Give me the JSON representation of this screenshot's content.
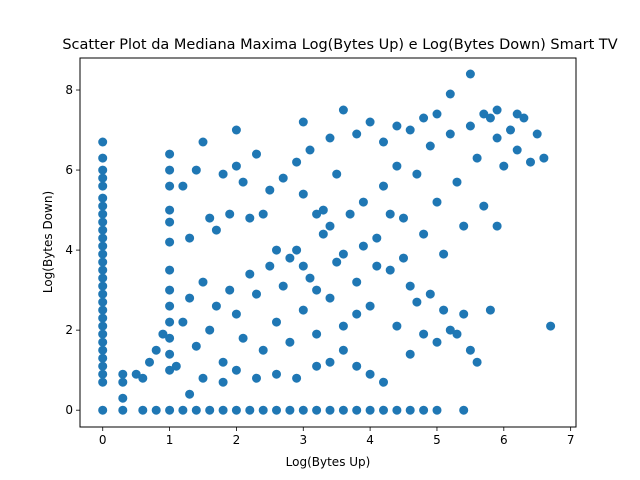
{
  "chart_data": {
    "type": "scatter",
    "title": "Scatter Plot da Mediana Maxima Log(Bytes Up) e Log(Bytes Down) Smart TV",
    "xlabel": "Log(Bytes Up)",
    "ylabel": "Log(Bytes Down)",
    "xlim": [
      -0.34,
      7.08
    ],
    "ylim": [
      -0.42,
      8.8
    ],
    "xticks": [
      0,
      1,
      2,
      3,
      4,
      5,
      6,
      7
    ],
    "yticks": [
      0,
      2,
      4,
      6,
      8
    ],
    "grid": false,
    "color": "#1f77b4",
    "series": [
      {
        "points": [
          [
            0,
            0
          ],
          [
            0,
            0.7
          ],
          [
            0,
            0.9
          ],
          [
            0,
            1.1
          ],
          [
            0,
            1.3
          ],
          [
            0,
            1.5
          ],
          [
            0,
            1.7
          ],
          [
            0,
            1.9
          ],
          [
            0,
            2.1
          ],
          [
            0,
            2.3
          ],
          [
            0,
            2.5
          ],
          [
            0,
            2.7
          ],
          [
            0,
            2.9
          ],
          [
            0,
            3.1
          ],
          [
            0,
            3.3
          ],
          [
            0,
            3.5
          ],
          [
            0,
            3.7
          ],
          [
            0,
            3.9
          ],
          [
            0,
            4.1
          ],
          [
            0,
            4.3
          ],
          [
            0,
            4.5
          ],
          [
            0,
            4.7
          ],
          [
            0,
            4.9
          ],
          [
            0,
            5.1
          ],
          [
            0,
            5.3
          ],
          [
            0,
            5.6
          ],
          [
            0,
            5.8
          ],
          [
            0,
            6.0
          ],
          [
            0,
            6.3
          ],
          [
            0,
            6.7
          ],
          [
            0.3,
            0
          ],
          [
            0.3,
            0.3
          ],
          [
            0.3,
            0.7
          ],
          [
            0.3,
            0.9
          ],
          [
            0.5,
            0.9
          ],
          [
            0.6,
            0.8
          ],
          [
            0.6,
            0
          ],
          [
            0.8,
            0
          ],
          [
            1.0,
            0
          ],
          [
            1.2,
            0
          ],
          [
            1.4,
            0
          ],
          [
            1.6,
            0
          ],
          [
            1.8,
            0
          ],
          [
            2.0,
            0
          ],
          [
            2.2,
            0
          ],
          [
            2.4,
            0
          ],
          [
            2.6,
            0
          ],
          [
            2.8,
            0
          ],
          [
            3.0,
            0
          ],
          [
            3.2,
            0
          ],
          [
            3.4,
            0
          ],
          [
            3.6,
            0
          ],
          [
            3.8,
            0
          ],
          [
            4.0,
            0
          ],
          [
            4.2,
            0
          ],
          [
            4.4,
            0
          ],
          [
            4.6,
            0
          ],
          [
            4.8,
            0
          ],
          [
            5.0,
            0
          ],
          [
            5.4,
            0
          ],
          [
            1.0,
            6.4
          ],
          [
            1.0,
            6.0
          ],
          [
            1.0,
            5.6
          ],
          [
            1.0,
            5.0
          ],
          [
            1.0,
            4.7
          ],
          [
            1.0,
            4.2
          ],
          [
            1.0,
            3.5
          ],
          [
            1.0,
            3.0
          ],
          [
            1.0,
            2.6
          ],
          [
            1.0,
            2.2
          ],
          [
            1.0,
            1.8
          ],
          [
            1.0,
            1.4
          ],
          [
            1.0,
            1.0
          ],
          [
            1.2,
            5.6
          ],
          [
            1.3,
            4.3
          ],
          [
            1.4,
            6.0
          ],
          [
            1.5,
            6.7
          ],
          [
            1.6,
            4.8
          ],
          [
            1.8,
            5.9
          ],
          [
            1.9,
            4.9
          ],
          [
            2.0,
            7.0
          ],
          [
            2.0,
            6.1
          ],
          [
            2.3,
            6.4
          ],
          [
            2.2,
            4.8
          ],
          [
            2.5,
            5.5
          ],
          [
            2.4,
            4.9
          ],
          [
            1.7,
            4.5
          ],
          [
            2.1,
            5.7
          ],
          [
            0.7,
            1.2
          ],
          [
            0.8,
            1.5
          ],
          [
            0.9,
            1.9
          ],
          [
            1.1,
            1.1
          ],
          [
            1.2,
            2.2
          ],
          [
            1.3,
            2.8
          ],
          [
            1.4,
            1.6
          ],
          [
            1.5,
            3.2
          ],
          [
            1.6,
            2.0
          ],
          [
            1.7,
            2.6
          ],
          [
            1.8,
            1.2
          ],
          [
            1.9,
            3.0
          ],
          [
            2.0,
            2.4
          ],
          [
            2.1,
            1.8
          ],
          [
            2.2,
            3.4
          ],
          [
            2.3,
            2.9
          ],
          [
            2.4,
            1.5
          ],
          [
            2.5,
            3.6
          ],
          [
            2.6,
            2.2
          ],
          [
            2.7,
            3.1
          ],
          [
            2.8,
            1.7
          ],
          [
            2.9,
            4.0
          ],
          [
            3.0,
            2.5
          ],
          [
            3.1,
            3.3
          ],
          [
            3.2,
            1.9
          ],
          [
            3.3,
            4.4
          ],
          [
            3.4,
            2.8
          ],
          [
            3.5,
            3.7
          ],
          [
            3.6,
            2.1
          ],
          [
            3.7,
            4.9
          ],
          [
            3.8,
            3.2
          ],
          [
            3.9,
            5.2
          ],
          [
            4.0,
            2.6
          ],
          [
            4.1,
            4.3
          ],
          [
            4.2,
            5.6
          ],
          [
            4.3,
            3.5
          ],
          [
            4.4,
            6.1
          ],
          [
            4.5,
            4.8
          ],
          [
            4.6,
            3.1
          ],
          [
            4.7,
            5.9
          ],
          [
            4.8,
            4.4
          ],
          [
            4.9,
            6.6
          ],
          [
            5.0,
            5.2
          ],
          [
            5.1,
            3.9
          ],
          [
            5.2,
            6.9
          ],
          [
            5.3,
            5.7
          ],
          [
            5.4,
            4.6
          ],
          [
            5.5,
            7.1
          ],
          [
            5.6,
            6.3
          ],
          [
            5.7,
            5.1
          ],
          [
            5.8,
            7.3
          ],
          [
            5.9,
            6.8
          ],
          [
            6.0,
            6.1
          ],
          [
            6.1,
            7.0
          ],
          [
            6.2,
            6.5
          ],
          [
            6.3,
            7.3
          ],
          [
            6.4,
            6.2
          ],
          [
            6.5,
            6.9
          ],
          [
            6.6,
            6.3
          ],
          [
            6.7,
            2.1
          ],
          [
            2.7,
            5.8
          ],
          [
            2.9,
            6.2
          ],
          [
            3.0,
            5.4
          ],
          [
            3.1,
            6.5
          ],
          [
            3.2,
            4.9
          ],
          [
            3.4,
            6.8
          ],
          [
            3.5,
            5.9
          ],
          [
            3.6,
            7.5
          ],
          [
            3.8,
            6.9
          ],
          [
            4.0,
            7.2
          ],
          [
            4.2,
            6.7
          ],
          [
            4.4,
            7.1
          ],
          [
            4.6,
            7.0
          ],
          [
            4.8,
            7.3
          ],
          [
            5.0,
            7.4
          ],
          [
            5.2,
            7.9
          ],
          [
            5.5,
            8.4
          ],
          [
            5.7,
            7.4
          ],
          [
            5.9,
            7.5
          ],
          [
            6.2,
            7.4
          ],
          [
            3.0,
            7.2
          ],
          [
            3.3,
            5.0
          ],
          [
            2.6,
            4.0
          ],
          [
            2.8,
            3.8
          ],
          [
            3.0,
            3.6
          ],
          [
            3.2,
            3.0
          ],
          [
            3.4,
            4.6
          ],
          [
            3.6,
            3.9
          ],
          [
            3.9,
            4.1
          ],
          [
            4.1,
            3.6
          ],
          [
            4.3,
            4.9
          ],
          [
            4.5,
            3.8
          ],
          [
            4.7,
            2.7
          ],
          [
            4.9,
            2.9
          ],
          [
            5.1,
            2.5
          ],
          [
            5.3,
            1.9
          ],
          [
            5.5,
            1.5
          ],
          [
            5.6,
            1.2
          ],
          [
            5.9,
            4.6
          ],
          [
            5.8,
            2.5
          ],
          [
            3.4,
            1.2
          ],
          [
            3.6,
            1.5
          ],
          [
            3.8,
            1.1
          ],
          [
            4.0,
            0.9
          ],
          [
            4.2,
            0.7
          ],
          [
            3.2,
            1.1
          ],
          [
            2.9,
            0.8
          ],
          [
            2.6,
            0.9
          ],
          [
            2.3,
            0.8
          ],
          [
            2.0,
            1.0
          ],
          [
            1.8,
            0.7
          ],
          [
            1.5,
            0.8
          ],
          [
            1.3,
            0.4
          ],
          [
            4.6,
            1.4
          ],
          [
            4.8,
            1.9
          ],
          [
            5.0,
            1.7
          ],
          [
            5.2,
            2.0
          ],
          [
            5.4,
            2.4
          ],
          [
            4.4,
            2.1
          ],
          [
            3.8,
            2.4
          ]
        ]
      }
    ]
  }
}
